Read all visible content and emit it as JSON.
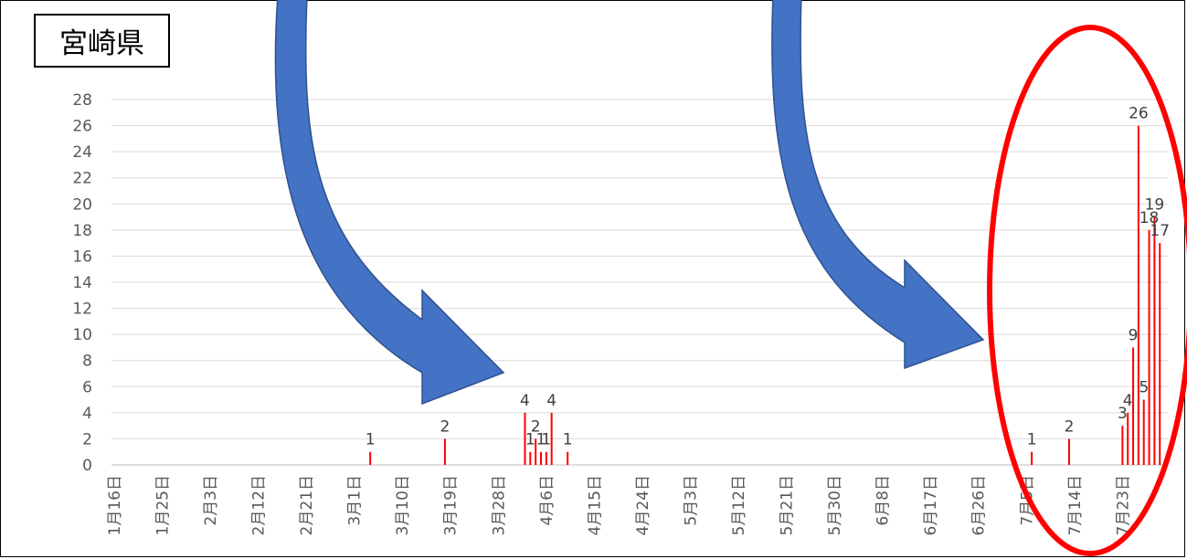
{
  "chart_data": {
    "type": "bar",
    "title": "宮崎県",
    "ylim": [
      0,
      28
    ],
    "yticks": [
      0,
      2,
      4,
      6,
      8,
      10,
      12,
      14,
      16,
      18,
      20,
      22,
      24,
      26,
      28
    ],
    "x_start": "2020-01-16",
    "x_end": "2020-07-31",
    "xticks": [
      "1月16日",
      "1月25日",
      "2月3日",
      "2月12日",
      "2月21日",
      "3月1日",
      "3月10日",
      "3月19日",
      "3月28日",
      "4月6日",
      "4月15日",
      "4月24日",
      "5月3日",
      "5月12日",
      "5月21日",
      "5月30日",
      "6月8日",
      "6月17日",
      "6月26日",
      "7月5日",
      "7月14日",
      "7月23日"
    ],
    "grid": true,
    "bar_color": "#ff0000",
    "points": [
      {
        "x": "2020-03-04",
        "y": 1
      },
      {
        "x": "2020-03-18",
        "y": 2
      },
      {
        "x": "2020-04-02",
        "y": 4
      },
      {
        "x": "2020-04-03",
        "y": 1
      },
      {
        "x": "2020-04-04",
        "y": 2
      },
      {
        "x": "2020-04-05",
        "y": 1
      },
      {
        "x": "2020-04-06",
        "y": 1
      },
      {
        "x": "2020-04-07",
        "y": 4
      },
      {
        "x": "2020-04-10",
        "y": 1
      },
      {
        "x": "2020-07-06",
        "y": 1
      },
      {
        "x": "2020-07-13",
        "y": 2
      },
      {
        "x": "2020-07-23",
        "y": 3
      },
      {
        "x": "2020-07-24",
        "y": 4
      },
      {
        "x": "2020-07-25",
        "y": 9
      },
      {
        "x": "2020-07-26",
        "y": 26
      },
      {
        "x": "2020-07-27",
        "y": 5
      },
      {
        "x": "2020-07-28",
        "y": 18
      },
      {
        "x": "2020-07-29",
        "y": 19
      },
      {
        "x": "2020-07-30",
        "y": 17
      }
    ]
  },
  "annotations": {
    "arrow_color": "#4472c4",
    "arrow_stroke": "#2f528f",
    "ellipse_color": "#ff0000"
  }
}
